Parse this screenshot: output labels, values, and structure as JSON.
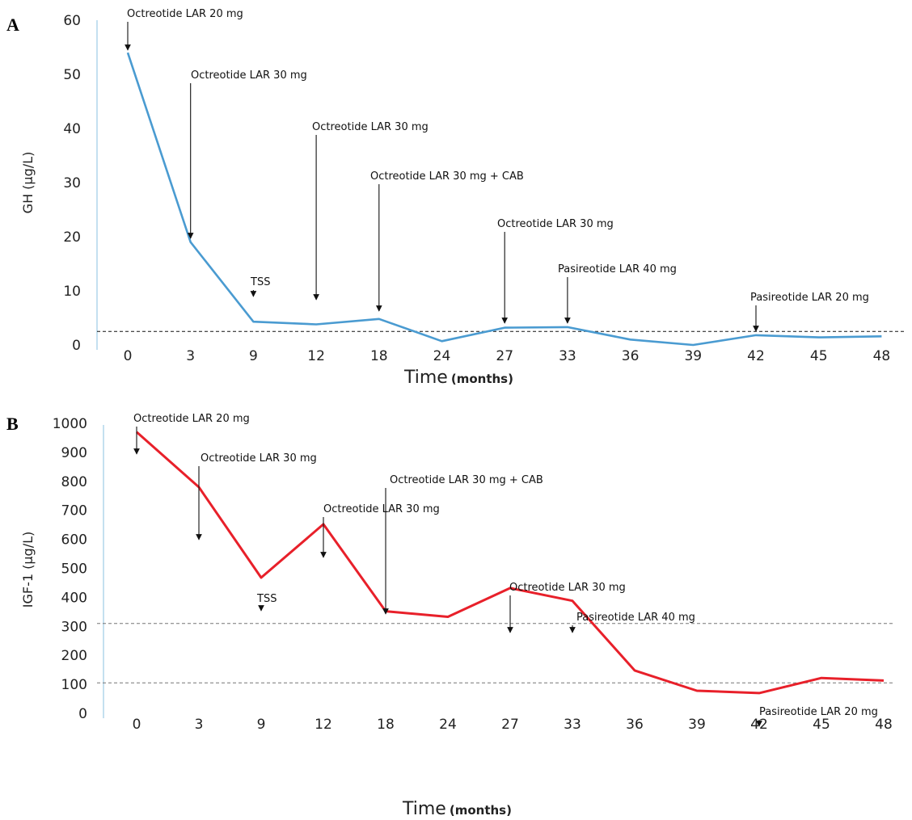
{
  "chart_data": [
    {
      "panel": "A",
      "type": "line",
      "ylabel": "GH (µg/L)",
      "xlabel": "Time",
      "xlabel_unit": "(months)",
      "categories": [
        "0",
        "3",
        "9",
        "12",
        "18",
        "24",
        "27",
        "33",
        "36",
        "39",
        "42",
        "45",
        "48"
      ],
      "yticks": [
        0,
        10,
        20,
        30,
        40,
        50,
        60
      ],
      "ylim": [
        0,
        60
      ],
      "series": [
        {
          "values": [
            54,
            19,
            4.3,
            3.8,
            4.8,
            0.7,
            3.2,
            3.3,
            1.0,
            0,
            1.8,
            1.4,
            1.6
          ],
          "color": "#4a9bd1"
        }
      ],
      "reference_lines": [
        2.5
      ],
      "annotations": [
        {
          "text": "Octreotide LAR 20 mg",
          "x_index": 0
        },
        {
          "text": "Octreotide LAR 30 mg",
          "x_index": 1
        },
        {
          "text": "TSS",
          "x_index": 2
        },
        {
          "text": "Octreotide LAR 30 mg",
          "x_index": 3
        },
        {
          "text": "Octreotide LAR 30 mg + CAB",
          "x_index": 4
        },
        {
          "text": "Octreotide LAR 30 mg",
          "x_index": 6
        },
        {
          "text": "Pasireotide LAR 40 mg",
          "x_index": 7
        },
        {
          "text": "Pasireotide LAR 20 mg",
          "x_index": 10
        }
      ]
    },
    {
      "panel": "B",
      "type": "line",
      "ylabel": "IGF-1 (µg/L)",
      "xlabel": "Time",
      "xlabel_unit": "(months)",
      "categories": [
        "0",
        "3",
        "9",
        "12",
        "18",
        "24",
        "27",
        "33",
        "36",
        "39",
        "42",
        "45",
        "48"
      ],
      "yticks": [
        0,
        100,
        200,
        300,
        400,
        500,
        600,
        700,
        800,
        900,
        1000
      ],
      "ylim": [
        0,
        1000
      ],
      "series": [
        {
          "values": [
            970,
            780,
            468,
            652,
            352,
            333,
            432,
            388,
            148,
            78,
            70,
            122,
            113
          ],
          "color": "#e8202a"
        }
      ],
      "reference_lines": [
        310,
        105
      ],
      "annotations": [
        {
          "text": "Octreotide LAR 20 mg",
          "x_index": 0
        },
        {
          "text": "Octreotide LAR 30 mg",
          "x_index": 1
        },
        {
          "text": "TSS",
          "x_index": 2
        },
        {
          "text": "Octreotide LAR 30 mg",
          "x_index": 3
        },
        {
          "text": "Octreotide LAR 30 mg + CAB",
          "x_index": 4
        },
        {
          "text": "Octreotide LAR 30 mg",
          "x_index": 6
        },
        {
          "text": "Pasireotide LAR 40 mg",
          "x_index": 7
        },
        {
          "text": "Pasireotide LAR 20 mg",
          "x_index": 10
        }
      ]
    }
  ]
}
